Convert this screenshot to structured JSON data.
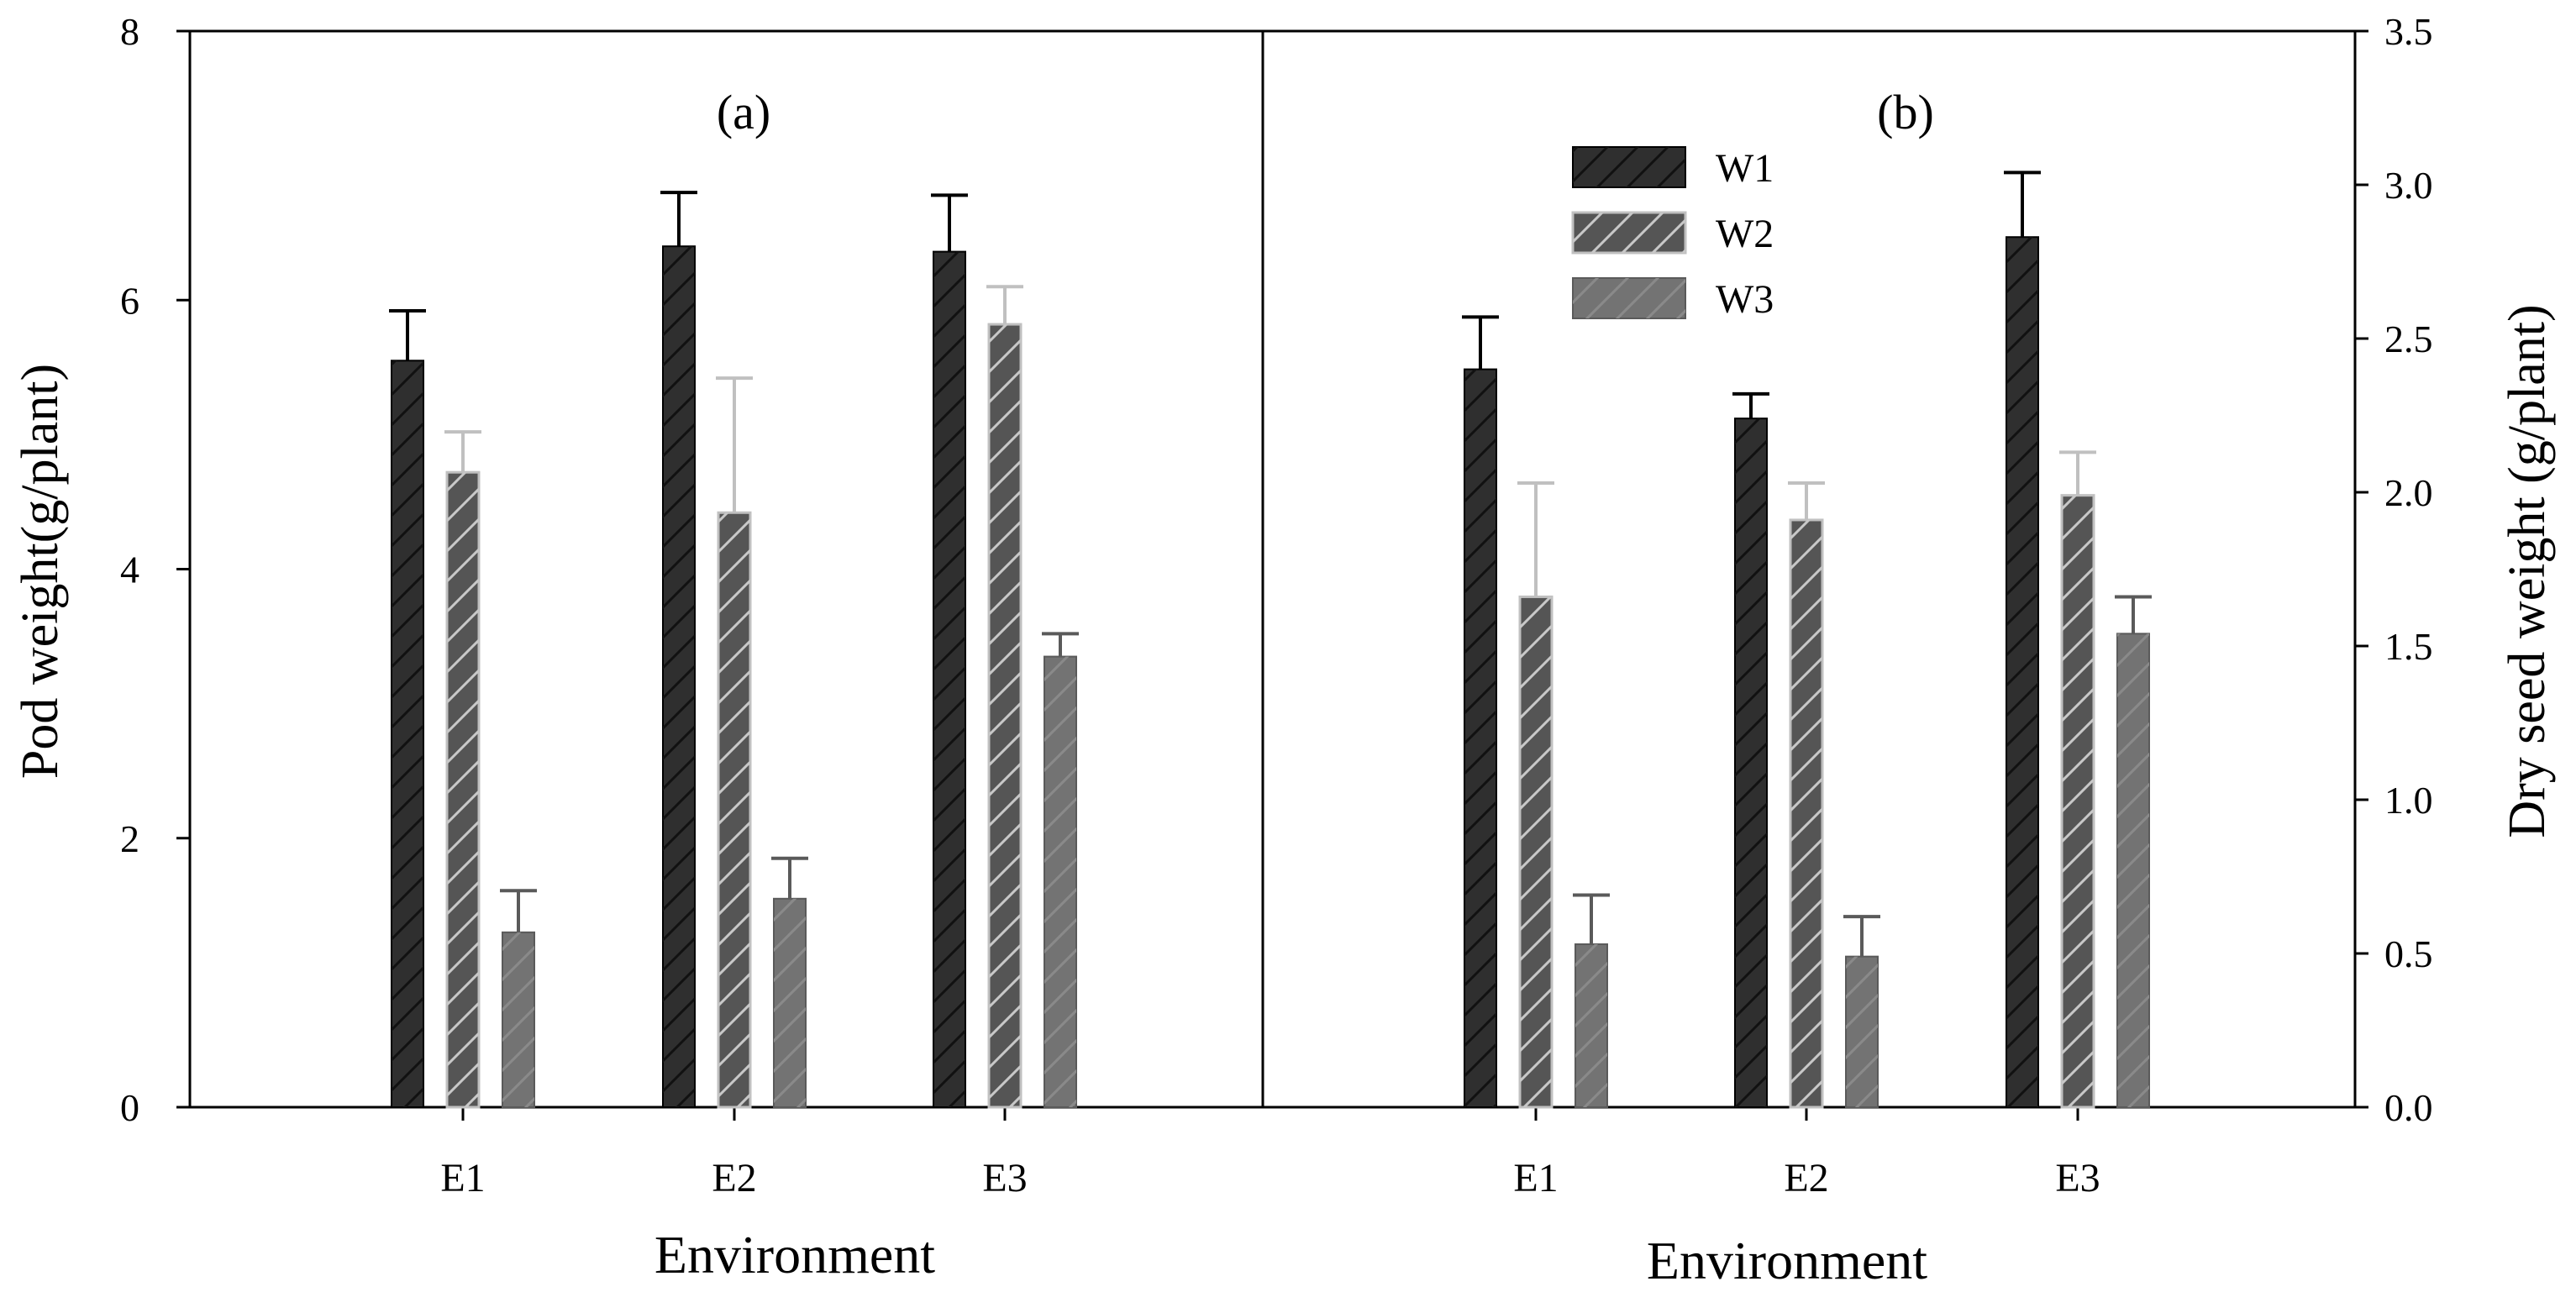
{
  "chart_data": [
    {
      "panel": "(a)",
      "type": "bar",
      "categories": [
        "E1",
        "E2",
        "E3"
      ],
      "series": [
        {
          "name": "W1",
          "values": [
            5.55,
            6.4,
            6.36
          ],
          "errors": [
            0.37,
            0.4,
            0.42
          ]
        },
        {
          "name": "W2",
          "values": [
            4.72,
            4.42,
            5.82
          ],
          "errors": [
            0.3,
            1.0,
            0.28
          ]
        },
        {
          "name": "W3",
          "values": [
            1.3,
            1.55,
            3.35
          ],
          "errors": [
            0.31,
            0.3,
            0.17
          ]
        }
      ],
      "xlabel": "Environment",
      "ylabel": "Pod weight(g/plant)",
      "ylim": [
        0,
        8
      ],
      "yticks": [
        "0",
        "2",
        "4",
        "6",
        "8"
      ],
      "grid": false
    },
    {
      "panel": "(b)",
      "type": "bar",
      "categories": [
        "E1",
        "E2",
        "E3"
      ],
      "series": [
        {
          "name": "W1",
          "values": [
            2.4,
            2.24,
            2.83
          ],
          "errors": [
            0.17,
            0.08,
            0.21
          ]
        },
        {
          "name": "W2",
          "values": [
            1.66,
            1.91,
            1.99
          ],
          "errors": [
            0.37,
            0.12,
            0.14
          ]
        },
        {
          "name": "W3",
          "values": [
            0.53,
            0.49,
            1.54
          ],
          "errors": [
            0.16,
            0.13,
            0.12
          ]
        }
      ],
      "xlabel": "Environment",
      "ylabel": "Dry seed weight (g/plant)",
      "ylim": [
        0,
        3.5
      ],
      "yticks": [
        "0.0",
        "0.5",
        "1.0",
        "1.5",
        "2.0",
        "2.5",
        "3.0",
        "3.5"
      ],
      "grid": false
    }
  ],
  "legend": {
    "placement": "top",
    "entries": [
      "W1",
      "W2",
      "W3"
    ]
  },
  "colors": {
    "W1": "#2f2f2f",
    "W2": "#555555",
    "W3": "#737373",
    "W1_hatch": "#111111",
    "W2_hatch": "#c8c8c8",
    "W3_hatch": "#8a8a8a",
    "W1_err": "#000000",
    "W2_err": "#c0c0c0",
    "W3_err": "#5a5a5a"
  }
}
